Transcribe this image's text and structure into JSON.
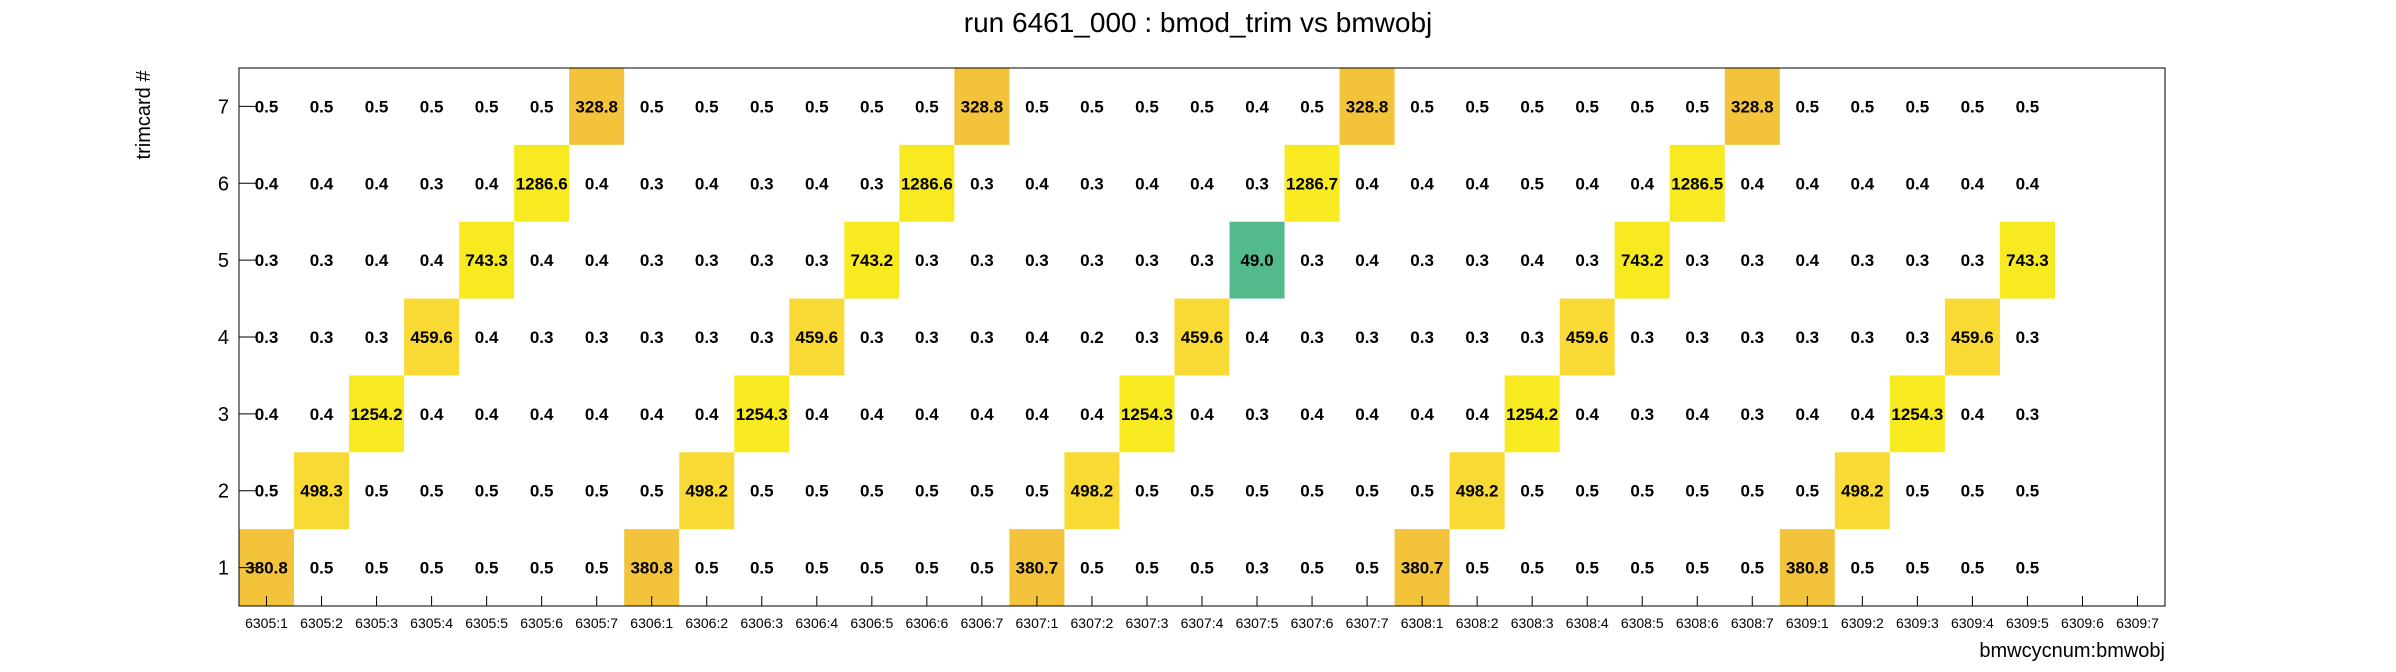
{
  "chart_data": {
    "type": "heatmap",
    "title": "run 6461_000 : bmod_trim vs bmwobj",
    "xlabel": "bmwcycnum:bmwobj",
    "ylabel": "trimcard #",
    "x_categories": [
      "6305:1",
      "6305:2",
      "6305:3",
      "6305:4",
      "6305:5",
      "6305:6",
      "6305:7",
      "6306:1",
      "6306:2",
      "6306:3",
      "6306:4",
      "6306:5",
      "6306:6",
      "6306:7",
      "6307:1",
      "6307:2",
      "6307:3",
      "6307:4",
      "6307:5",
      "6307:6",
      "6307:7",
      "6308:1",
      "6308:2",
      "6308:3",
      "6308:4",
      "6308:5",
      "6308:6",
      "6308:7",
      "6309:1",
      "6309:2",
      "6309:3",
      "6309:4",
      "6309:5",
      "6309:6",
      "6309:7"
    ],
    "y_categories": [
      "1",
      "2",
      "3",
      "4",
      "5",
      "6",
      "7"
    ],
    "rows": {
      "7": [
        "0.5",
        "0.5",
        "0.5",
        "0.5",
        "0.5",
        "0.5",
        "328.8",
        "0.5",
        "0.5",
        "0.5",
        "0.5",
        "0.5",
        "0.5",
        "328.8",
        "0.5",
        "0.5",
        "0.5",
        "0.5",
        "0.4",
        "0.5",
        "328.8",
        "0.5",
        "0.5",
        "0.5",
        "0.5",
        "0.5",
        "0.5",
        "328.8",
        "0.5",
        "0.5",
        "0.5",
        "0.5",
        "0.5",
        "",
        ""
      ],
      "6": [
        "0.4",
        "0.4",
        "0.4",
        "0.3",
        "0.4",
        "1286.6",
        "0.4",
        "0.3",
        "0.4",
        "0.3",
        "0.4",
        "0.3",
        "1286.6",
        "0.3",
        "0.4",
        "0.3",
        "0.4",
        "0.4",
        "0.3",
        "1286.7",
        "0.4",
        "0.4",
        "0.4",
        "0.5",
        "0.4",
        "0.4",
        "1286.5",
        "0.4",
        "0.4",
        "0.4",
        "0.4",
        "0.4",
        "0.4",
        "",
        ""
      ],
      "5": [
        "0.3",
        "0.3",
        "0.4",
        "0.4",
        "743.3",
        "0.4",
        "0.4",
        "0.3",
        "0.3",
        "0.3",
        "0.3",
        "743.2",
        "0.3",
        "0.3",
        "0.3",
        "0.3",
        "0.3",
        "0.3",
        "49.0",
        "0.3",
        "0.4",
        "0.3",
        "0.3",
        "0.4",
        "0.3",
        "743.2",
        "0.3",
        "0.3",
        "0.4",
        "0.3",
        "0.3",
        "0.3",
        "743.3",
        "",
        ""
      ],
      "4": [
        "0.3",
        "0.3",
        "0.3",
        "459.6",
        "0.4",
        "0.3",
        "0.3",
        "0.3",
        "0.3",
        "0.3",
        "459.6",
        "0.3",
        "0.3",
        "0.3",
        "0.4",
        "0.2",
        "0.3",
        "459.6",
        "0.4",
        "0.3",
        "0.3",
        "0.3",
        "0.3",
        "0.3",
        "459.6",
        "0.3",
        "0.3",
        "0.3",
        "0.3",
        "0.3",
        "0.3",
        "459.6",
        "0.3",
        "",
        ""
      ],
      "3": [
        "0.4",
        "0.4",
        "1254.2",
        "0.4",
        "0.4",
        "0.4",
        "0.4",
        "0.4",
        "0.4",
        "1254.3",
        "0.4",
        "0.4",
        "0.4",
        "0.4",
        "0.4",
        "0.4",
        "1254.3",
        "0.4",
        "0.3",
        "0.4",
        "0.4",
        "0.4",
        "0.4",
        "1254.2",
        "0.4",
        "0.3",
        "0.4",
        "0.3",
        "0.4",
        "0.4",
        "1254.3",
        "0.4",
        "0.3",
        "",
        ""
      ],
      "2": [
        "0.5",
        "498.3",
        "0.5",
        "0.5",
        "0.5",
        "0.5",
        "0.5",
        "0.5",
        "498.2",
        "0.5",
        "0.5",
        "0.5",
        "0.5",
        "0.5",
        "0.5",
        "498.2",
        "0.5",
        "0.5",
        "0.5",
        "0.5",
        "0.5",
        "0.5",
        "498.2",
        "0.5",
        "0.5",
        "0.5",
        "0.5",
        "0.5",
        "0.5",
        "498.2",
        "0.5",
        "0.5",
        "0.5",
        "",
        ""
      ],
      "1": [
        "380.8",
        "0.5",
        "0.5",
        "0.5",
        "0.5",
        "0.5",
        "0.5",
        "380.8",
        "0.5",
        "0.5",
        "0.5",
        "0.5",
        "0.5",
        "0.5",
        "380.7",
        "0.5",
        "0.5",
        "0.5",
        "0.3",
        "0.5",
        "0.5",
        "380.7",
        "0.5",
        "0.5",
        "0.5",
        "0.5",
        "0.5",
        "0.5",
        "380.8",
        "0.5",
        "0.5",
        "0.5",
        "0.5",
        "",
        ""
      ]
    },
    "colors": {
      "filled": "#f3c33c",
      "bright": "#f7ea21",
      "mid": "#f9d934",
      "low": "#52ba8c"
    }
  }
}
